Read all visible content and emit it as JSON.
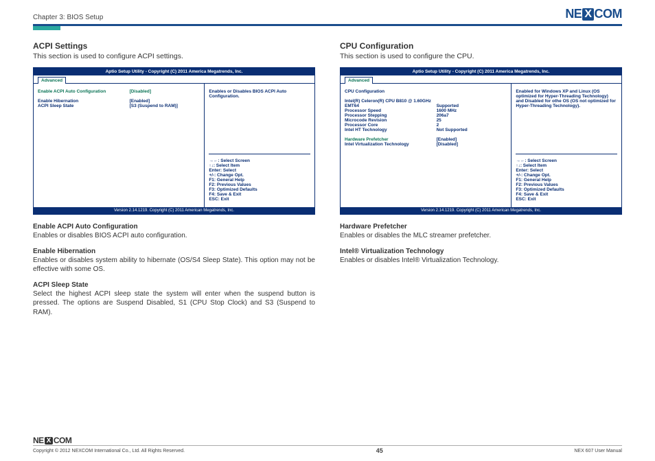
{
  "header": {
    "chapter": "Chapter 3: BIOS Setup",
    "logo_ne": "NE",
    "logo_x": "X",
    "logo_com": "COM"
  },
  "left": {
    "heading": "ACPI Settings",
    "intro": "This section is used to configure ACPI settings.",
    "bios": {
      "top": "Aptio Setup Utility - Copyright (C) 2011 America Megatrends, Inc.",
      "tab": "Advanced",
      "rows": [
        {
          "label": "Enable ACPI Auto Configuration",
          "value": "[Disabled]",
          "style": "teal"
        },
        {
          "label": "",
          "value": ""
        },
        {
          "label": "Enable Hibernation",
          "value": "[Enabled]",
          "style": "blue"
        },
        {
          "label": "ACPI Sleep State",
          "value": "[S3 (Suspend to RAM)]",
          "style": "blue"
        }
      ],
      "right_top": "Enables or Disables BIOS ACPI Auto Configuration.",
      "help": [
        "→←: Select Screen",
        "↑↓: Select Item",
        "Enter: Select",
        "+/-: Change Opt.",
        "F1: General Help",
        "F2: Previous Values",
        "F3: Optimized Defaults",
        "F4: Save & Exit",
        "ESC: Exit"
      ],
      "footer": "Version 2.14.1219. Copyright (C) 2011 American Megatrends, Inc."
    },
    "defs": [
      {
        "title": "Enable ACPI Auto Configuration",
        "body": "Enables or disables BIOS ACPI auto configuration."
      },
      {
        "title": "Enable Hibernation",
        "body": "Enables or disables system ability to hibernate (OS/S4 Sleep State). This option may not be effective with some OS."
      },
      {
        "title": "ACPI Sleep State",
        "body": "Select the highest ACPI sleep state the system will enter when the suspend button is pressed. The options are Suspend Disabled, S1 (CPU Stop Clock) and S3 (Suspend to RAM)."
      }
    ]
  },
  "right": {
    "heading": "CPU Configuration",
    "intro": "This section is used to configure the CPU.",
    "bios": {
      "top": "Aptio Setup Utility - Copyright (C) 2011 America Megatrends, Inc.",
      "tab": "Advanced",
      "header_line": "CPU Configuration",
      "cpu_name": "Intel(R) Celeron(R) CPU B810 @ 1.60GHz",
      "rows": [
        {
          "label": "EMT64",
          "value": "Supported"
        },
        {
          "label": "Processor Speed",
          "value": "1600 MHz"
        },
        {
          "label": "Processor Stepping",
          "value": "206a7"
        },
        {
          "label": "Microcode Revision",
          "value": "25"
        },
        {
          "label": "Processor Core",
          "value": "2"
        },
        {
          "label": "Intel HT Technology",
          "value": "Not Supported"
        }
      ],
      "opts": [
        {
          "label": "Hardware Prefetcher",
          "value": "[Enabled]",
          "style": "teal"
        },
        {
          "label": "Intel Virtualization Technology",
          "value": "[Disabled]",
          "style": "blue"
        }
      ],
      "right_top": "Enabled for Windows XP and Linux (OS optimized for Hyper-Threading Technology) and Disabled for othe OS (OS not optimized for Hyper-Threading Technology).",
      "help": [
        "→←: Select Screen",
        "↑↓: Select Item",
        "Enter: Select",
        "+/-: Change Opt.",
        "F1: General Help",
        "F2: Previous Values",
        "F3: Optimized Defaults",
        "F4: Save & Exit",
        "ESC: Exit"
      ],
      "footer": "Version 2.14.1219. Copyright (C) 2011 American Megatrends, Inc."
    },
    "defs": [
      {
        "title": "Hardware Prefetcher",
        "body": "Enables or disables the MLC streamer prefetcher."
      },
      {
        "title": "Intel® Virtualization Technology",
        "body": "Enables or disables Intel® Virtualization Technology."
      }
    ]
  },
  "footer": {
    "copyright": "Copyright © 2012 NEXCOM International Co., Ltd. All Rights Reserved.",
    "page": "45",
    "manual": "NEX 607 User Manual"
  }
}
